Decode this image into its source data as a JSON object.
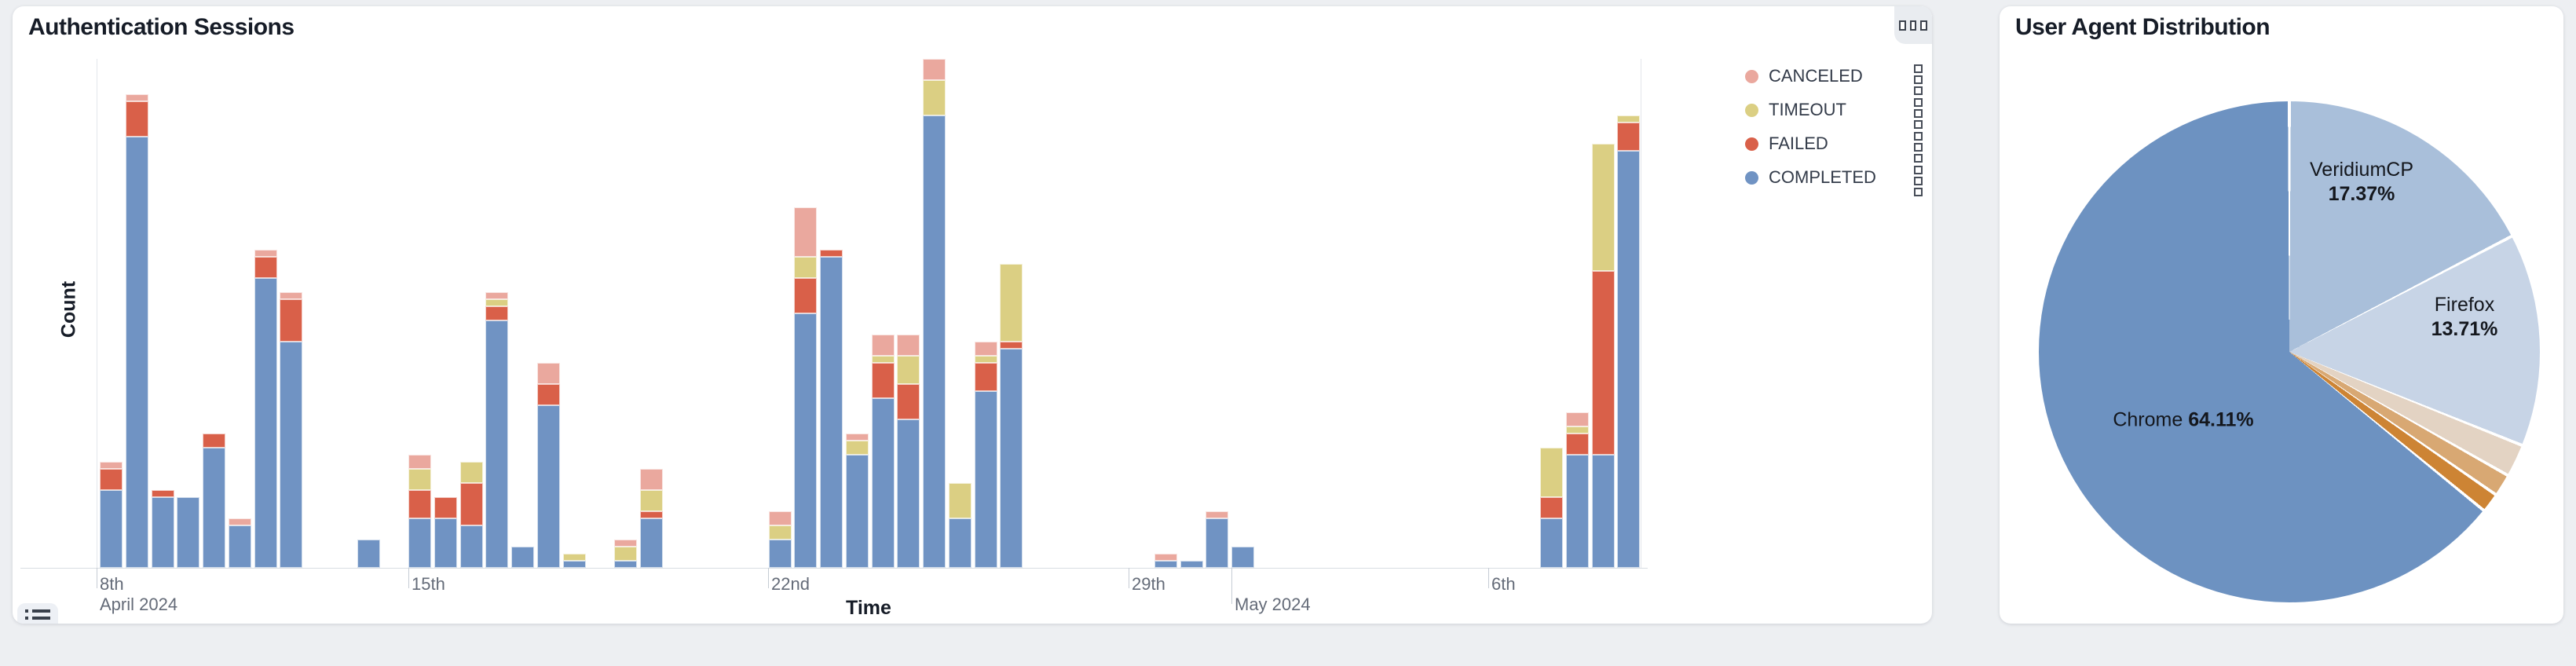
{
  "left_card": {
    "title": "Authentication Sessions",
    "ylabel": "Count",
    "xlabel": "Time",
    "legend": [
      {
        "label": "CANCELED",
        "color": "#eaa89e"
      },
      {
        "label": "TIMEOUT",
        "color": "#dbcf83"
      },
      {
        "label": "FAILED",
        "color": "#d96049"
      },
      {
        "label": "COMPLETED",
        "color": "#7093c3"
      }
    ],
    "x_ticks": [
      {
        "x": 0,
        "label": "8th",
        "sub": "April 2024",
        "long": false
      },
      {
        "x": 397,
        "label": "15th",
        "sub": "",
        "long": false
      },
      {
        "x": 855,
        "label": "22nd",
        "sub": "",
        "long": false
      },
      {
        "x": 1314,
        "label": "29th",
        "sub": "",
        "long": false
      },
      {
        "x": 1445,
        "label": "",
        "sub": "May 2024",
        "long": true
      },
      {
        "x": 1772,
        "label": "6th",
        "sub": "",
        "long": false
      }
    ]
  },
  "right_card": {
    "title": "User Agent Distribution"
  },
  "icons": {
    "panel_menu": "ellipsis-squares-icon",
    "legend_item_menu": "kebab-squares-icon",
    "legend_toggle": "list-icon"
  },
  "chart_data": [
    {
      "type": "bar",
      "stack": true,
      "title": "Authentication Sessions",
      "xlabel": "Time",
      "ylabel": "Count",
      "x_axis": "time, 12-hour bins from Apr 9 2024 AM (slot 0) to May 8 2024 PM (slot 59)",
      "ylim": [
        0,
        72
      ],
      "grid": false,
      "legend_position": "top-right",
      "series_order": [
        "completed",
        "failed",
        "timeout",
        "canceled"
      ],
      "series_colors": {
        "completed": "#7093c3",
        "failed": "#d96049",
        "timeout": "#dbcf83",
        "canceled": "#eaa89e"
      },
      "slots": [
        {
          "slot": 0,
          "time": "Apr 9 AM",
          "completed": 11,
          "failed": 3,
          "timeout": 0,
          "canceled": 1
        },
        {
          "slot": 1,
          "time": "Apr 9 PM",
          "completed": 61,
          "failed": 5,
          "timeout": 0,
          "canceled": 1
        },
        {
          "slot": 2,
          "time": "Apr 10 AM",
          "completed": 10,
          "failed": 1,
          "timeout": 0,
          "canceled": 0
        },
        {
          "slot": 3,
          "time": "Apr 10 PM",
          "completed": 10,
          "failed": 0,
          "timeout": 0,
          "canceled": 0
        },
        {
          "slot": 4,
          "time": "Apr 11 AM",
          "completed": 17,
          "failed": 2,
          "timeout": 0,
          "canceled": 0
        },
        {
          "slot": 5,
          "time": "Apr 11 PM",
          "completed": 6,
          "failed": 0,
          "timeout": 0,
          "canceled": 1
        },
        {
          "slot": 6,
          "time": "Apr 12 AM",
          "completed": 41,
          "failed": 3,
          "timeout": 0,
          "canceled": 1
        },
        {
          "slot": 7,
          "time": "Apr 12 PM",
          "completed": 32,
          "failed": 6,
          "timeout": 0,
          "canceled": 1
        },
        {
          "slot": 10,
          "time": "Apr 14 AM",
          "completed": 4,
          "failed": 0,
          "timeout": 0,
          "canceled": 0
        },
        {
          "slot": 12,
          "time": "Apr 15 AM",
          "completed": 7,
          "failed": 4,
          "timeout": 3,
          "canceled": 2
        },
        {
          "slot": 13,
          "time": "Apr 15 PM",
          "completed": 7,
          "failed": 3,
          "timeout": 0,
          "canceled": 0
        },
        {
          "slot": 14,
          "time": "Apr 16 AM",
          "completed": 6,
          "failed": 6,
          "timeout": 3,
          "canceled": 0
        },
        {
          "slot": 15,
          "time": "Apr 16 PM",
          "completed": 35,
          "failed": 2,
          "timeout": 1,
          "canceled": 1
        },
        {
          "slot": 16,
          "time": "Apr 17 AM",
          "completed": 3,
          "failed": 0,
          "timeout": 0,
          "canceled": 0
        },
        {
          "slot": 17,
          "time": "Apr 17 PM",
          "completed": 23,
          "failed": 3,
          "timeout": 0,
          "canceled": 3
        },
        {
          "slot": 18,
          "time": "Apr 18 AM",
          "completed": 1,
          "failed": 0,
          "timeout": 1,
          "canceled": 0
        },
        {
          "slot": 20,
          "time": "Apr 19 AM",
          "completed": 1,
          "failed": 0,
          "timeout": 2,
          "canceled": 1
        },
        {
          "slot": 21,
          "time": "Apr 19 PM",
          "completed": 7,
          "failed": 1,
          "timeout": 3,
          "canceled": 3
        },
        {
          "slot": 26,
          "time": "Apr 22 AM",
          "completed": 4,
          "failed": 0,
          "timeout": 2,
          "canceled": 2
        },
        {
          "slot": 27,
          "time": "Apr 22 PM",
          "completed": 36,
          "failed": 5,
          "timeout": 3,
          "canceled": 7
        },
        {
          "slot": 28,
          "time": "Apr 23 AM",
          "completed": 44,
          "failed": 1,
          "timeout": 0,
          "canceled": 0
        },
        {
          "slot": 29,
          "time": "Apr 23 PM",
          "completed": 16,
          "failed": 0,
          "timeout": 2,
          "canceled": 1
        },
        {
          "slot": 30,
          "time": "Apr 24 AM",
          "completed": 24,
          "failed": 5,
          "timeout": 1,
          "canceled": 3
        },
        {
          "slot": 31,
          "time": "Apr 24 PM",
          "completed": 21,
          "failed": 5,
          "timeout": 4,
          "canceled": 3
        },
        {
          "slot": 32,
          "time": "Apr 25 AM",
          "completed": 64,
          "failed": 0,
          "timeout": 5,
          "canceled": 3
        },
        {
          "slot": 33,
          "time": "Apr 25 PM",
          "completed": 7,
          "failed": 0,
          "timeout": 5,
          "canceled": 0
        },
        {
          "slot": 34,
          "time": "Apr 26 AM",
          "completed": 25,
          "failed": 4,
          "timeout": 1,
          "canceled": 2
        },
        {
          "slot": 35,
          "time": "Apr 26 PM",
          "completed": 31,
          "failed": 1,
          "timeout": 11,
          "canceled": 0
        },
        {
          "slot": 41,
          "time": "Apr 29 PM",
          "completed": 1,
          "failed": 0,
          "timeout": 0,
          "canceled": 1
        },
        {
          "slot": 42,
          "time": "Apr 30 AM",
          "completed": 1,
          "failed": 0,
          "timeout": 0,
          "canceled": 0
        },
        {
          "slot": 43,
          "time": "Apr 30 PM",
          "completed": 7,
          "failed": 0,
          "timeout": 0,
          "canceled": 1
        },
        {
          "slot": 44,
          "time": "May 1 AM",
          "completed": 3,
          "failed": 0,
          "timeout": 0,
          "canceled": 0
        },
        {
          "slot": 56,
          "time": "May 7 AM",
          "completed": 7,
          "failed": 3,
          "timeout": 7,
          "canceled": 0
        },
        {
          "slot": 57,
          "time": "May 7 PM",
          "completed": 16,
          "failed": 3,
          "timeout": 1,
          "canceled": 2
        },
        {
          "slot": 58,
          "time": "May 8 AM",
          "completed": 16,
          "failed": 26,
          "timeout": 18,
          "canceled": 0
        },
        {
          "slot": 59,
          "time": "May 8 PM",
          "completed": 59,
          "failed": 4,
          "timeout": 1,
          "canceled": 0
        }
      ]
    },
    {
      "type": "pie",
      "title": "User Agent Distribution",
      "start_angle": "top",
      "direction": "clockwise",
      "slices": [
        {
          "label": "VeridiumCP",
          "pct": 17.37,
          "color": "#a9bfda"
        },
        {
          "label": "Firefox",
          "pct": 13.71,
          "color": "#c7d4e6"
        },
        {
          "label": "",
          "pct": 2.11,
          "color": "#e3d3c3"
        },
        {
          "label": "",
          "pct": 1.44,
          "color": "#d8a873"
        },
        {
          "label": "",
          "pct": 1.26,
          "color": "#cd8434"
        },
        {
          "label": "Chrome",
          "pct": 64.11,
          "color": "#6d92c1"
        }
      ],
      "labels": [
        {
          "name": "VeridiumCP",
          "pct_text": "17.37%",
          "layout": "stacked",
          "x": 461,
          "y": 224
        },
        {
          "name": "Firefox",
          "pct_text": "13.71%",
          "layout": "stacked",
          "x": 592,
          "y": 396
        },
        {
          "name": "Chrome",
          "pct_text": "64.11%",
          "layout": "inline",
          "x": 234,
          "y": 527
        }
      ],
      "geometry": {
        "cx": 369,
        "cy": 440,
        "r": 319,
        "gap_deg": 0.7
      }
    }
  ]
}
